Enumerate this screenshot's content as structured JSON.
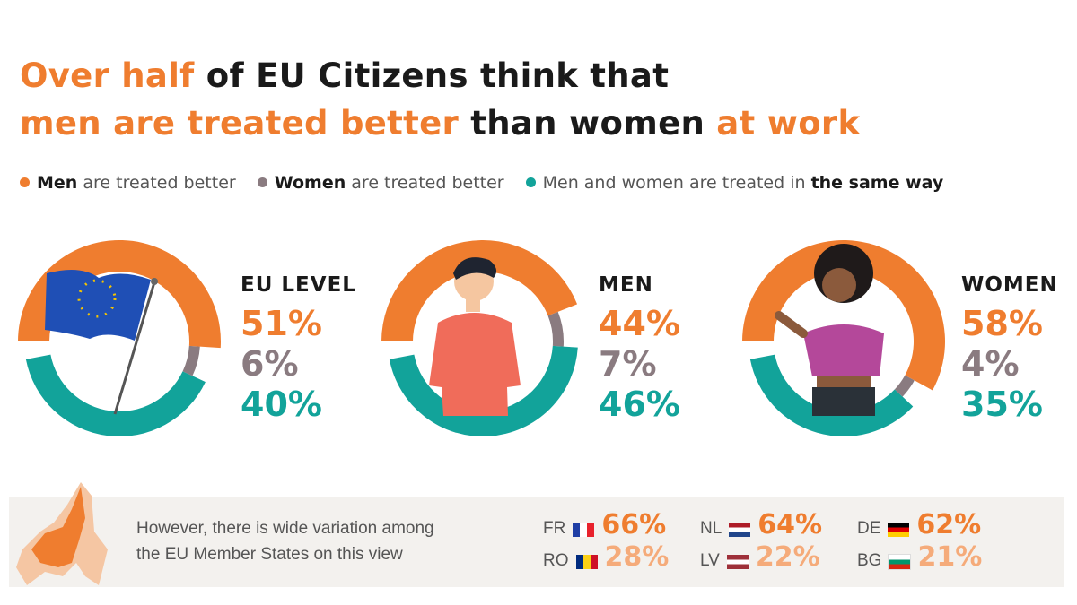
{
  "title": {
    "l1a": "Over half",
    "l1b": " of EU Citizens think that",
    "l2a": "men are treated better",
    "l2b": " than women ",
    "l2c": "at work"
  },
  "legend": [
    {
      "bold": "Men",
      "rest": " are treated better",
      "color": "#ef7d2f"
    },
    {
      "bold": "Women",
      "rest": " are treated better",
      "color": "#8a7b80"
    },
    {
      "pre": "Men and women are treated in ",
      "bold": "the same way",
      "color": "#12a39a"
    }
  ],
  "colors": {
    "men_better": "#ef7d2f",
    "women_better": "#8a7b80",
    "same": "#12a39a",
    "light": "#f5ab7a"
  },
  "chart_data": [
    {
      "type": "pie",
      "title": "EU LEVEL",
      "categories": [
        "Men are treated better",
        "Women are treated better",
        "Men and women are treated in the same way"
      ],
      "values": [
        51,
        6,
        40
      ],
      "labels": [
        "51%",
        "6%",
        "40%"
      ]
    },
    {
      "type": "pie",
      "title": "MEN",
      "categories": [
        "Men are treated better",
        "Women are treated better",
        "Men and women are treated in the same way"
      ],
      "values": [
        44,
        7,
        46
      ],
      "labels": [
        "44%",
        "7%",
        "46%"
      ]
    },
    {
      "type": "pie",
      "title": "WOMEN",
      "categories": [
        "Men are treated better",
        "Women are treated better",
        "Men and women are treated in the same way"
      ],
      "values": [
        58,
        4,
        35
      ],
      "labels": [
        "58%",
        "4%",
        "35%"
      ]
    }
  ],
  "variation": {
    "note_l1": "However, there is wide variation among",
    "note_l2": "the EU Member States on this view",
    "countries": [
      {
        "code": "FR",
        "value": "66%",
        "flag": [
          "#1f3fa5",
          "#ffffff",
          "#e8222c"
        ],
        "dir": "v",
        "high": true
      },
      {
        "code": "NL",
        "value": "64%",
        "flag": [
          "#ae1c28",
          "#ffffff",
          "#21468b"
        ],
        "dir": "h",
        "high": true
      },
      {
        "code": "DE",
        "value": "62%",
        "flag": [
          "#000000",
          "#dd0000",
          "#ffce00"
        ],
        "dir": "h",
        "high": true
      },
      {
        "code": "RO",
        "value": "28%",
        "flag": [
          "#002b7f",
          "#fcd116",
          "#ce1126"
        ],
        "dir": "v",
        "high": false
      },
      {
        "code": "LV",
        "value": "22%",
        "flag": [
          "#9e3039",
          "#ffffff",
          "#9e3039"
        ],
        "dir": "h",
        "high": false
      },
      {
        "code": "BG",
        "value": "21%",
        "flag": [
          "#ffffff",
          "#00966e",
          "#d62612"
        ],
        "dir": "h",
        "high": false
      }
    ]
  }
}
